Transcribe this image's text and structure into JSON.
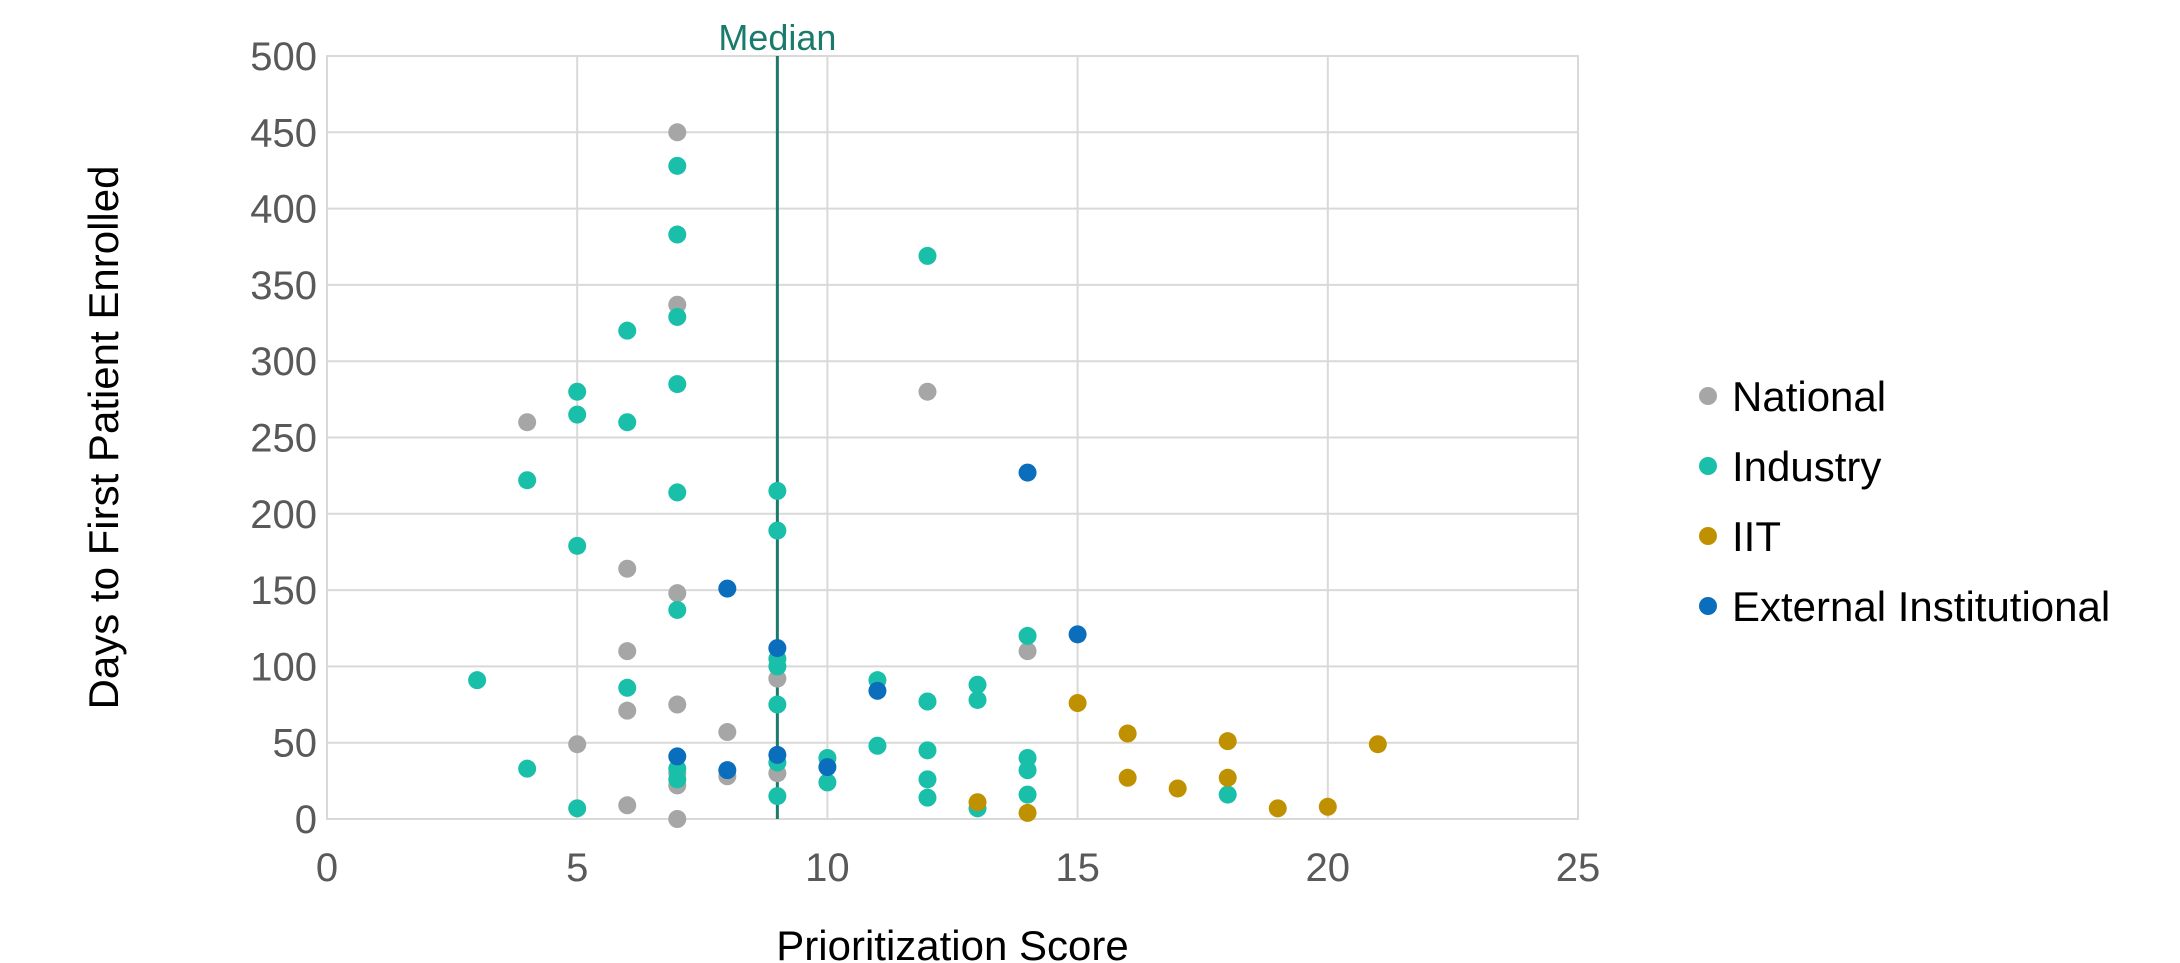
{
  "chart_data": {
    "type": "scatter",
    "title": "",
    "xlabel": "Prioritization Score",
    "ylabel": "Days to First Patient Enrolled",
    "xlim": [
      0,
      25
    ],
    "ylim": [
      0,
      500
    ],
    "x_ticks": [
      0,
      5,
      10,
      15,
      20,
      25
    ],
    "y_ticks": [
      0,
      50,
      100,
      150,
      200,
      250,
      300,
      350,
      400,
      450,
      500
    ],
    "grid": true,
    "legend_position": "right",
    "median": {
      "label": "Median",
      "x": 9,
      "color": "#1a7a6b"
    },
    "series": [
      {
        "name": "National",
        "color": "#a6a6a6",
        "points": [
          [
            7,
            450
          ],
          [
            7,
            337
          ],
          [
            4,
            260
          ],
          [
            12,
            280
          ],
          [
            6,
            164
          ],
          [
            7,
            148
          ],
          [
            6,
            110
          ],
          [
            14,
            110
          ],
          [
            9,
            92
          ],
          [
            7,
            75
          ],
          [
            6,
            71
          ],
          [
            8,
            57
          ],
          [
            5,
            49
          ],
          [
            7,
            30
          ],
          [
            7,
            22
          ],
          [
            8,
            28
          ],
          [
            9,
            30
          ],
          [
            6,
            9
          ],
          [
            7,
            0
          ]
        ]
      },
      {
        "name": "Industry",
        "color": "#1abfaa",
        "points": [
          [
            7,
            428
          ],
          [
            7,
            383
          ],
          [
            12,
            369
          ],
          [
            7,
            329
          ],
          [
            6,
            320
          ],
          [
            7,
            285
          ],
          [
            5,
            280
          ],
          [
            5,
            265
          ],
          [
            6,
            260
          ],
          [
            4,
            222
          ],
          [
            7,
            214
          ],
          [
            9,
            215
          ],
          [
            9,
            189
          ],
          [
            5,
            179
          ],
          [
            7,
            137
          ],
          [
            14,
            120
          ],
          [
            9,
            105
          ],
          [
            9,
            100
          ],
          [
            3,
            91
          ],
          [
            11,
            91
          ],
          [
            6,
            86
          ],
          [
            13,
            88
          ],
          [
            12,
            77
          ],
          [
            13,
            78
          ],
          [
            9,
            75
          ],
          [
            11,
            48
          ],
          [
            12,
            45
          ],
          [
            10,
            40
          ],
          [
            14,
            40
          ],
          [
            9,
            37
          ],
          [
            4,
            33
          ],
          [
            7,
            33
          ],
          [
            14,
            32
          ],
          [
            7,
            26
          ],
          [
            12,
            26
          ],
          [
            10,
            24
          ],
          [
            9,
            15
          ],
          [
            12,
            14
          ],
          [
            14,
            16
          ],
          [
            18,
            16
          ],
          [
            5,
            7
          ],
          [
            13,
            7
          ]
        ]
      },
      {
        "name": "IIT",
        "color": "#bf9000",
        "points": [
          [
            15,
            76
          ],
          [
            16,
            56
          ],
          [
            18,
            51
          ],
          [
            21,
            49
          ],
          [
            16,
            27
          ],
          [
            18,
            27
          ],
          [
            17,
            20
          ],
          [
            13,
            11
          ],
          [
            19,
            7
          ],
          [
            20,
            8
          ],
          [
            14,
            4
          ]
        ]
      },
      {
        "name": "External Institutional",
        "color": "#0a6ebd",
        "points": [
          [
            14,
            227
          ],
          [
            8,
            151
          ],
          [
            15,
            121
          ],
          [
            9,
            112
          ],
          [
            11,
            84
          ],
          [
            9,
            42
          ],
          [
            7,
            41
          ],
          [
            10,
            34
          ],
          [
            8,
            32
          ]
        ]
      }
    ]
  }
}
